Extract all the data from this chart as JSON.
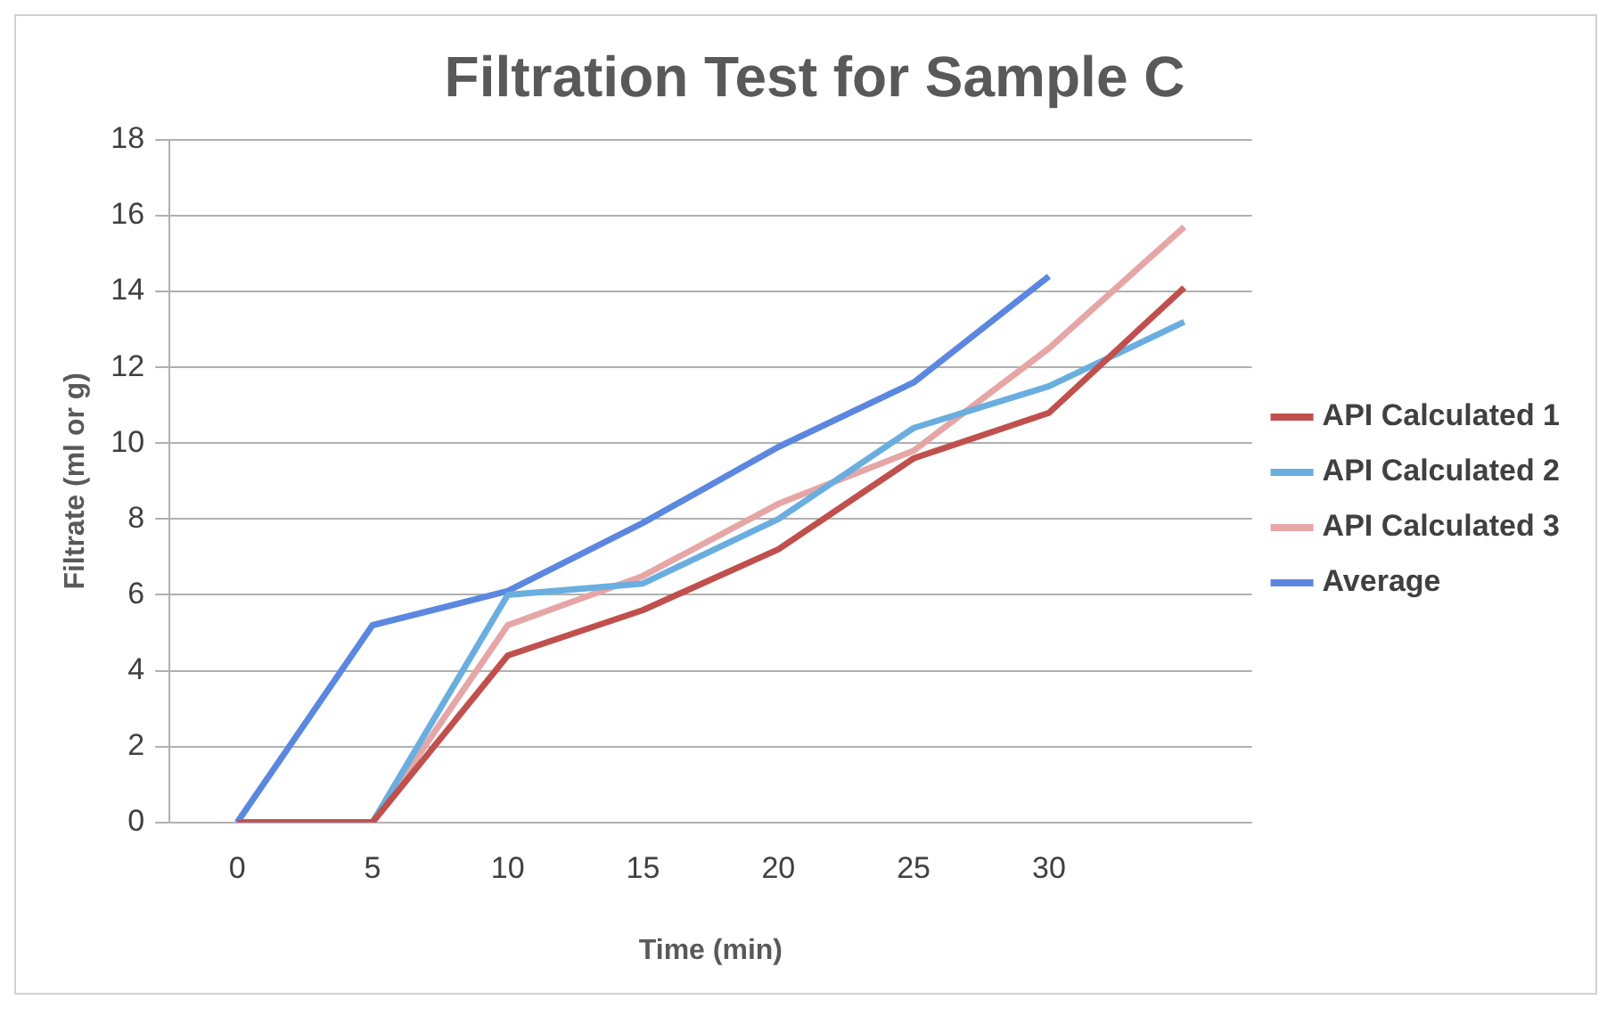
{
  "chart_data": {
    "type": "line",
    "title": "Filtration Test for Sample C",
    "xlabel": "Time (min)",
    "ylabel": "Filtrate (ml or g)",
    "categories": [
      "0",
      "5",
      "10",
      "15",
      "20",
      "25",
      "30",
      null
    ],
    "series": [
      {
        "name": "API Calculated 1",
        "color": "#c0504d",
        "values": [
          0,
          0,
          4.4,
          5.6,
          7.2,
          9.6,
          10.8,
          14.1
        ]
      },
      {
        "name": "API Calculated 2",
        "color": "#6aaee0",
        "values": [
          0,
          0,
          6.0,
          6.3,
          8.0,
          10.4,
          11.5,
          13.2
        ]
      },
      {
        "name": "API Calculated 3",
        "color": "#e6a6a6",
        "values": [
          0,
          0,
          5.2,
          6.5,
          8.4,
          9.8,
          12.5,
          15.7
        ]
      },
      {
        "name": "Average",
        "color": "#5b87e0",
        "values": [
          0,
          5.2,
          6.1,
          7.9,
          9.9,
          11.6,
          14.4,
          null
        ]
      }
    ],
    "ylim": [
      0,
      18
    ],
    "yticks": [
      0,
      2,
      4,
      6,
      8,
      10,
      12,
      14,
      16,
      18
    ],
    "grid": "y",
    "legend": "right",
    "marker": "none",
    "line_style": "solid"
  }
}
